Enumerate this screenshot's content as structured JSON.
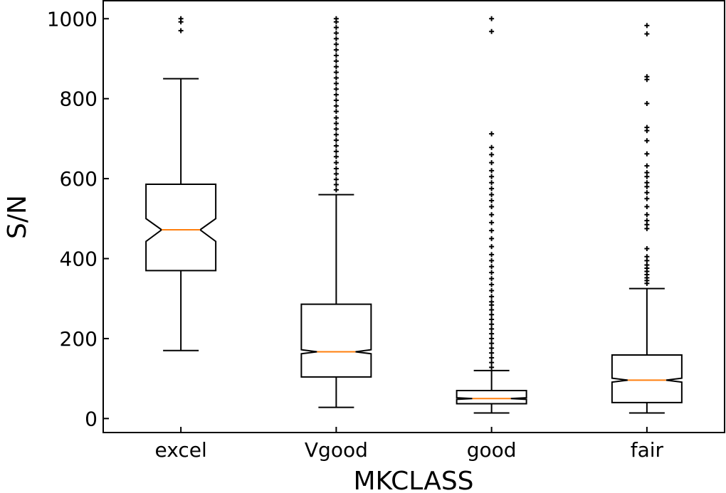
{
  "chart_data": {
    "type": "boxplot",
    "notched": true,
    "title": "",
    "xlabel": "MKCLASS",
    "ylabel": "S/N",
    "ylim": [
      -35,
      1045
    ],
    "yticks": [
      0,
      200,
      400,
      600,
      800,
      1000
    ],
    "grid": false,
    "categories": [
      "excel",
      "Vgood",
      "good",
      "fair"
    ],
    "boxes": [
      {
        "category": "excel",
        "whisker_low": 170,
        "q1": 370,
        "median": 472,
        "q3": 586,
        "whisker_high": 850,
        "notch_low": 443,
        "notch_high": 500,
        "outliers": [
          970,
          992,
          1000
        ]
      },
      {
        "category": "Vgood",
        "whisker_low": 28,
        "q1": 104,
        "median": 167,
        "q3": 286,
        "whisker_high": 560,
        "notch_low": 162,
        "notch_high": 172,
        "outliers": [
          572,
          585,
          598,
          612,
          625,
          640,
          655,
          668,
          682,
          696,
          710,
          724,
          738,
          752,
          768,
          782,
          796,
          810,
          824,
          838,
          852,
          866,
          880,
          894,
          908,
          922,
          936,
          950,
          964,
          978,
          992,
          1000
        ]
      },
      {
        "category": "good",
        "whisker_low": 14,
        "q1": 37,
        "median": 50,
        "q3": 70,
        "whisker_high": 120,
        "notch_low": 48,
        "notch_high": 52,
        "outliers": [
          128,
          140,
          152,
          164,
          176,
          188,
          200,
          212,
          224,
          236,
          248,
          260,
          272,
          284,
          292,
          305,
          320,
          335,
          350,
          365,
          380,
          395,
          410,
          430,
          450,
          470,
          490,
          510,
          530,
          545,
          560,
          575,
          590,
          605,
          620,
          640,
          660,
          678,
          712,
          968,
          1000
        ]
      },
      {
        "category": "fair",
        "whisker_low": 14,
        "q1": 40,
        "median": 96,
        "q3": 159,
        "whisker_high": 325,
        "notch_low": 91,
        "notch_high": 101,
        "outliers": [
          338,
          345,
          352,
          360,
          368,
          376,
          384,
          395,
          405,
          425,
          475,
          485,
          495,
          510,
          530,
          550,
          565,
          580,
          590,
          605,
          615,
          632,
          662,
          695,
          720,
          728,
          788,
          848,
          855,
          962,
          983
        ]
      }
    ],
    "colors": {
      "box": "#000000",
      "median": "#ff7f0e",
      "outlier": "#000000",
      "axes": "#000000",
      "background": "#ffffff"
    }
  }
}
